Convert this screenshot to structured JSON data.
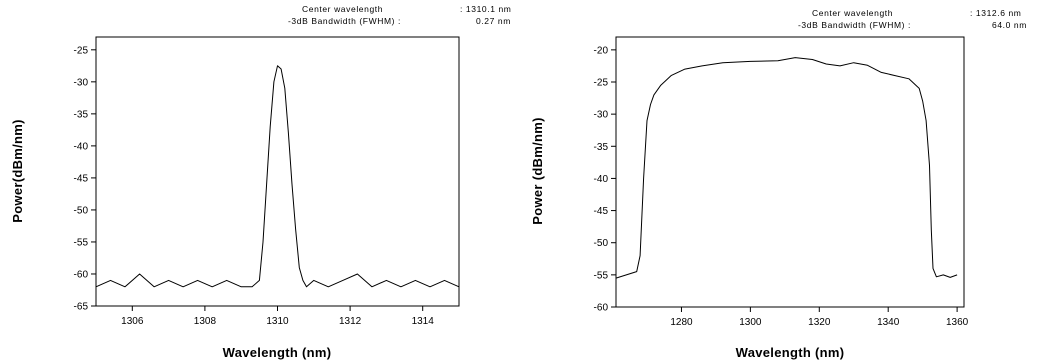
{
  "chart_data": [
    {
      "type": "line",
      "xlabel": "Wavelength (nm)",
      "ylabel": "Power(dBm/nm)",
      "xlim": [
        1305,
        1315
      ],
      "ylim": [
        -65,
        -23
      ],
      "xticks": [
        1306,
        1308,
        1310,
        1312,
        1314
      ],
      "yticks": [
        -25,
        -30,
        -35,
        -40,
        -45,
        -50,
        -55,
        -60,
        -65
      ],
      "annotations": [
        {
          "label": "Center wavelength",
          "value": ": 1310.1 nm"
        },
        {
          "label": "-3dB Bandwidth (FWHM) :",
          "value": "0.27 nm"
        }
      ],
      "series": [
        {
          "x": [
            1305.0,
            1305.4,
            1305.8,
            1306.2,
            1306.6,
            1307.0,
            1307.4,
            1307.8,
            1308.2,
            1308.6,
            1309.0,
            1309.3,
            1309.5,
            1309.6,
            1309.7,
            1309.8,
            1309.9,
            1310.0,
            1310.1,
            1310.2,
            1310.3,
            1310.4,
            1310.5,
            1310.6,
            1310.7,
            1310.8,
            1311.0,
            1311.4,
            1311.8,
            1312.2,
            1312.6,
            1313.0,
            1313.4,
            1313.8,
            1314.2,
            1314.6,
            1315.0
          ],
          "y": [
            -62,
            -61,
            -62,
            -60,
            -62,
            -61,
            -62,
            -61,
            -62,
            -61,
            -62,
            -62,
            -61,
            -55,
            -46,
            -37,
            -30,
            -27.5,
            -28,
            -31,
            -38,
            -46,
            -53,
            -59,
            -61,
            -62,
            -61,
            -62,
            -61,
            -60,
            -62,
            -61,
            -62,
            -61,
            -62,
            -61,
            -62
          ]
        }
      ]
    },
    {
      "type": "line",
      "xlabel": "Wavelength (nm)",
      "ylabel": "Power (dBm/nm)",
      "xlim": [
        1261,
        1362
      ],
      "ylim": [
        -60,
        -18
      ],
      "xticks": [
        1280,
        1300,
        1320,
        1340,
        1360
      ],
      "yticks": [
        -20,
        -25,
        -30,
        -35,
        -40,
        -45,
        -50,
        -55,
        -60
      ],
      "annotations": [
        {
          "label": "Center wavelength",
          "value": ": 1312.6 nm"
        },
        {
          "label": "-3dB Bandwidth (FWHM) :",
          "value": "64.0 nm"
        }
      ],
      "series": [
        {
          "x": [
            1261,
            1264,
            1267,
            1268,
            1269,
            1270,
            1271,
            1272,
            1274,
            1277,
            1281,
            1286,
            1292,
            1300,
            1308,
            1313,
            1318,
            1322,
            1326,
            1330,
            1334,
            1338,
            1342,
            1346,
            1349,
            1350,
            1351,
            1352,
            1352.5,
            1353,
            1354,
            1356,
            1358,
            1360
          ],
          "y": [
            -55.5,
            -55,
            -54.5,
            -52,
            -40,
            -31,
            -28.5,
            -27,
            -25.5,
            -24,
            -23,
            -22.5,
            -22,
            -21.8,
            -21.7,
            -21.2,
            -21.5,
            -22.2,
            -22.5,
            -22,
            -22.4,
            -23.5,
            -24,
            -24.5,
            -26,
            -28,
            -31,
            -38,
            -48,
            -54,
            -55.3,
            -55,
            -55.4,
            -55
          ]
        }
      ]
    }
  ]
}
